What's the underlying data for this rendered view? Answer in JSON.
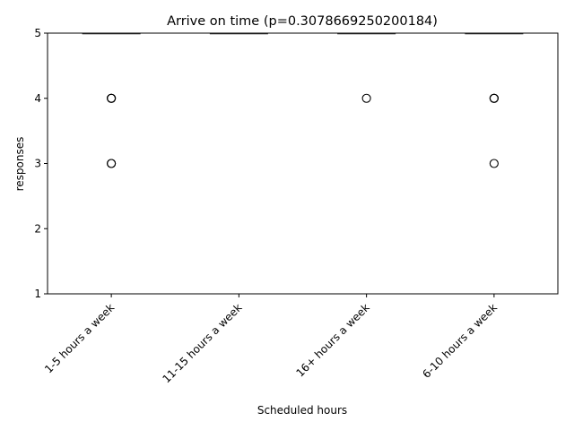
{
  "chart_data": {
    "type": "box",
    "title": "Arrive on time (p=0.3078669250200184)",
    "xlabel": "Scheduled hours",
    "ylabel": "responses",
    "ylim": [
      1,
      5
    ],
    "yticks": [
      "1",
      "2",
      "3",
      "4",
      "5"
    ],
    "categories": [
      "1-5 hours a week",
      "11-15 hours a week",
      "16+ hours a week",
      "6-10 hours a week"
    ],
    "boxes": [
      {
        "category": "1-5 hours a week",
        "median": 5,
        "q1": 5,
        "q3": 5,
        "whisker_low": 5,
        "whisker_high": 5,
        "outliers": [
          4,
          4,
          4,
          3,
          3
        ]
      },
      {
        "category": "11-15 hours a week",
        "median": 5,
        "q1": 5,
        "q3": 5,
        "whisker_low": 5,
        "whisker_high": 5,
        "outliers": []
      },
      {
        "category": "16+ hours a week",
        "median": 5,
        "q1": 5,
        "q3": 5,
        "whisker_low": 5,
        "whisker_high": 5,
        "outliers": [
          4
        ]
      },
      {
        "category": "6-10 hours a week",
        "median": 5,
        "q1": 5,
        "q3": 5,
        "whisker_low": 5,
        "whisker_high": 5,
        "outliers": [
          4,
          4,
          4,
          3
        ]
      }
    ],
    "grid": false,
    "legend": "none"
  }
}
